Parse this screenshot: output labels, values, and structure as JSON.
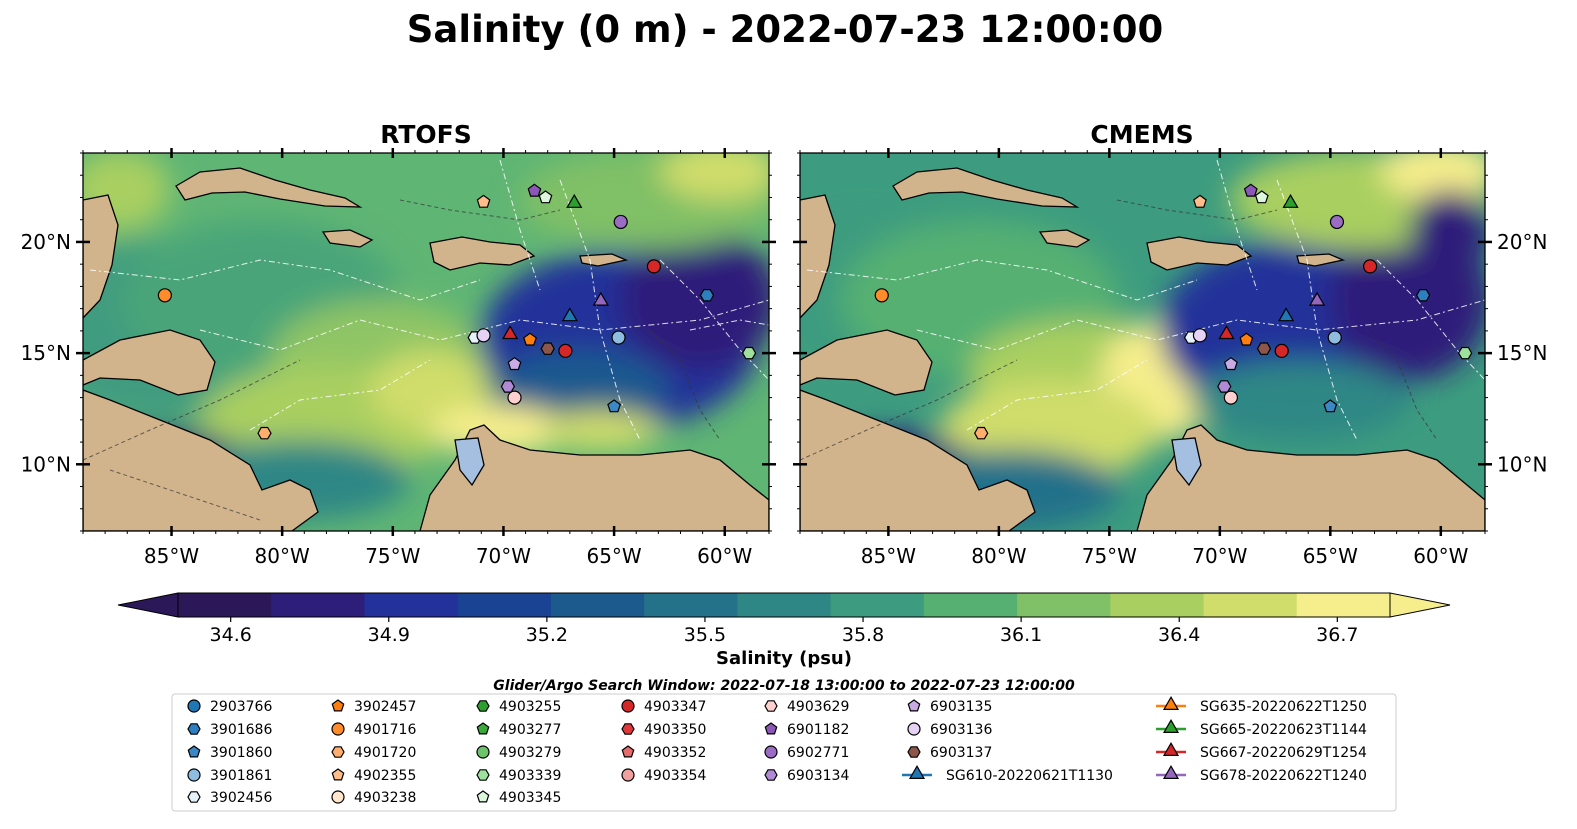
{
  "figure": {
    "title": "Salinity (0 m) - 2022-07-23 12:00:00",
    "search_window": "Glider/Argo Search Window: 2022-07-18 13:00:00 to 2022-07-23 12:00:00"
  },
  "chart_data": [
    {
      "type": "heatmap",
      "title": "RTOFS",
      "variable": "Salinity",
      "depth": "0 m",
      "xlim": [
        -89,
        -58
      ],
      "ylim": [
        7,
        24
      ],
      "x_ticks": [
        "85°W",
        "80°W",
        "75°W",
        "70°W",
        "65°W",
        "60°W"
      ],
      "y_ticks": [
        "10°N",
        "15°N",
        "20°N"
      ]
    },
    {
      "type": "heatmap",
      "title": "CMEMS",
      "variable": "Salinity",
      "depth": "0 m",
      "xlim": [
        -89,
        -58
      ],
      "ylim": [
        7,
        24
      ],
      "x_ticks": [
        "85°W",
        "80°W",
        "75°W",
        "70°W",
        "65°W",
        "60°W"
      ],
      "y_ticks": [
        "10°N",
        "15°N",
        "20°N"
      ]
    }
  ],
  "colorbar": {
    "label": "Salinity (psu)",
    "min": 34.5,
    "max": 36.8,
    "ticks": [
      "34.6",
      "34.9",
      "35.2",
      "35.5",
      "35.8",
      "36.1",
      "36.4",
      "36.7"
    ],
    "tick_values": [
      34.6,
      34.9,
      35.2,
      35.5,
      35.8,
      36.1,
      36.4,
      36.7
    ],
    "colors": [
      "#2a1859",
      "#2d1e7a",
      "#23319a",
      "#1a4394",
      "#1c5a8e",
      "#24718a",
      "#2f8785",
      "#3d9c7f",
      "#55b072",
      "#80c066",
      "#a9cf60",
      "#d0dd6b",
      "#f6ee8c"
    ]
  },
  "legend": {
    "columns": [
      [
        {
          "label": "2903766",
          "marker": "circle",
          "color": "#1f77b4"
        },
        {
          "label": "3901686",
          "marker": "hexagon",
          "color": "#2d7fc0"
        },
        {
          "label": "3901860",
          "marker": "pentagon",
          "color": "#3c88c4"
        },
        {
          "label": "3901861",
          "marker": "circle",
          "color": "#8fbde0"
        },
        {
          "label": "3902456",
          "marker": "hexagon",
          "color": "#e7f1fa"
        }
      ],
      [
        {
          "label": "3902457",
          "marker": "pentagon",
          "color": "#ff7f0e"
        },
        {
          "label": "4901716",
          "marker": "circle",
          "color": "#ff8c2a"
        },
        {
          "label": "4901720",
          "marker": "hexagon",
          "color": "#ffae6e"
        },
        {
          "label": "4902355",
          "marker": "pentagon",
          "color": "#ffbd8a"
        },
        {
          "label": "4903238",
          "marker": "circle",
          "color": "#ffe6cc"
        }
      ],
      [
        {
          "label": "4903255",
          "marker": "hexagon",
          "color": "#2ca02c"
        },
        {
          "label": "4903277",
          "marker": "pentagon",
          "color": "#3aa93a"
        },
        {
          "label": "4903279",
          "marker": "circle",
          "color": "#6cc36c"
        },
        {
          "label": "4903339",
          "marker": "hexagon",
          "color": "#9ee09e"
        },
        {
          "label": "4903345",
          "marker": "pentagon",
          "color": "#dcf7dc"
        }
      ],
      [
        {
          "label": "4903347",
          "marker": "circle",
          "color": "#d62728"
        },
        {
          "label": "4903350",
          "marker": "hexagon",
          "color": "#e0383a"
        },
        {
          "label": "4903352",
          "marker": "pentagon",
          "color": "#e86b6b"
        },
        {
          "label": "4903354",
          "marker": "circle",
          "color": "#f1a0a0"
        }
      ],
      [
        {
          "label": "4903629",
          "marker": "hexagon",
          "color": "#ffd0d0"
        },
        {
          "label": "6901182",
          "marker": "pentagon",
          "color": "#8c58b8"
        },
        {
          "label": "6902771",
          "marker": "circle",
          "color": "#9a6cc4"
        },
        {
          "label": "6903134",
          "marker": "hexagon",
          "color": "#b08ad4"
        }
      ],
      [
        {
          "label": "6903135",
          "marker": "pentagon",
          "color": "#c8aae4"
        },
        {
          "label": "6903136",
          "marker": "circle",
          "color": "#e6d2f4"
        },
        {
          "label": "6903137",
          "marker": "hexagon",
          "color": "#8c564b"
        },
        {
          "label": "SG610-20220621T1130",
          "marker": "triangle-line",
          "color": "#1f77b4"
        }
      ],
      [
        {
          "label": "SG635-20220622T1250",
          "marker": "triangle-line",
          "color": "#ff7f0e"
        },
        {
          "label": "SG665-20220623T1144",
          "marker": "triangle-line",
          "color": "#2ca02c"
        },
        {
          "label": "SG667-20220629T1254",
          "marker": "triangle-line",
          "color": "#d62728"
        },
        {
          "label": "SG678-20220622T1240",
          "marker": "triangle-line",
          "color": "#9467bd"
        }
      ]
    ]
  },
  "markers": [
    {
      "lon": -85.3,
      "lat": 17.6,
      "marker": "circle",
      "color": "#ff8c2a"
    },
    {
      "lon": -80.8,
      "lat": 11.4,
      "marker": "hexagon",
      "color": "#ffae6e"
    },
    {
      "lon": -70.9,
      "lat": 21.8,
      "marker": "pentagon",
      "color": "#ffbd8a"
    },
    {
      "lon": -68.6,
      "lat": 22.3,
      "marker": "pentagon",
      "color": "#8c58b8"
    },
    {
      "lon": -68.1,
      "lat": 22.0,
      "marker": "pentagon",
      "color": "#dcf7dc"
    },
    {
      "lon": -66.8,
      "lat": 21.8,
      "marker": "triangle",
      "color": "#2ca02c"
    },
    {
      "lon": -64.7,
      "lat": 20.9,
      "marker": "circle",
      "color": "#9a6cc4"
    },
    {
      "lon": -63.2,
      "lat": 18.9,
      "marker": "circle",
      "color": "#d62728"
    },
    {
      "lon": -60.8,
      "lat": 17.6,
      "marker": "hexagon",
      "color": "#2d7fc0"
    },
    {
      "lon": -65.6,
      "lat": 17.4,
      "marker": "triangle",
      "color": "#9467bd"
    },
    {
      "lon": -67.0,
      "lat": 16.7,
      "marker": "triangle",
      "color": "#1f77b4"
    },
    {
      "lon": -69.7,
      "lat": 15.9,
      "marker": "triangle",
      "color": "#d62728"
    },
    {
      "lon": -68.8,
      "lat": 15.6,
      "marker": "pentagon",
      "color": "#ff7f0e"
    },
    {
      "lon": -68.0,
      "lat": 15.2,
      "marker": "hexagon",
      "color": "#8c564b"
    },
    {
      "lon": -67.2,
      "lat": 15.1,
      "marker": "circle",
      "color": "#d62728"
    },
    {
      "lon": -71.3,
      "lat": 15.7,
      "marker": "hexagon",
      "color": "#e7f1fa"
    },
    {
      "lon": -70.9,
      "lat": 15.8,
      "marker": "circle",
      "color": "#e6d2f4"
    },
    {
      "lon": -64.8,
      "lat": 15.7,
      "marker": "circle",
      "color": "#8fbde0"
    },
    {
      "lon": -69.5,
      "lat": 14.5,
      "marker": "pentagon",
      "color": "#c8aae4"
    },
    {
      "lon": -69.8,
      "lat": 13.5,
      "marker": "hexagon",
      "color": "#b08ad4"
    },
    {
      "lon": -69.5,
      "lat": 13.0,
      "marker": "circle",
      "color": "#ffd0d0"
    },
    {
      "lon": -65.0,
      "lat": 12.6,
      "marker": "pentagon",
      "color": "#3c88c4"
    },
    {
      "lon": -58.9,
      "lat": 15.0,
      "marker": "hexagon",
      "color": "#9ee09e"
    }
  ]
}
